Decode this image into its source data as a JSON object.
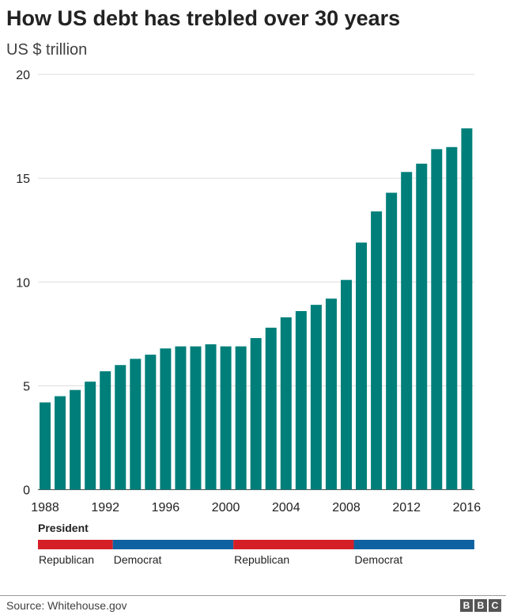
{
  "chart_data": {
    "type": "bar",
    "title": "How US debt has trebled over 30 years",
    "subtitle": "US $ trillion",
    "categories": [
      "1988",
      "1989",
      "1990",
      "1991",
      "1992",
      "1993",
      "1994",
      "1995",
      "1996",
      "1997",
      "1998",
      "1999",
      "2000",
      "2001",
      "2002",
      "2003",
      "2004",
      "2005",
      "2006",
      "2007",
      "2008",
      "2009",
      "2010",
      "2011",
      "2012",
      "2013",
      "2014",
      "2015",
      "2016"
    ],
    "values": [
      4.2,
      4.5,
      4.8,
      5.2,
      5.7,
      6.0,
      6.3,
      6.5,
      6.8,
      6.9,
      6.9,
      7.0,
      6.9,
      6.9,
      7.3,
      7.8,
      8.3,
      8.6,
      8.9,
      9.2,
      10.1,
      11.9,
      13.4,
      14.3,
      15.3,
      15.7,
      16.4,
      16.5,
      17.4
    ],
    "ylim": [
      0,
      20
    ],
    "yticks": [
      "0",
      "5",
      "10",
      "15",
      "20"
    ],
    "xticks": [
      "1988",
      "1992",
      "1996",
      "2000",
      "2004",
      "2008",
      "2012",
      "2016"
    ],
    "grid": true,
    "bar_color": "#007f7a",
    "president": {
      "label": "President",
      "segments": [
        {
          "party": "Republican",
          "from": 1988,
          "to": 1993,
          "color": "#d51f27"
        },
        {
          "party": "Democrat",
          "from": 1993,
          "to": 2001,
          "color": "#0f62a1"
        },
        {
          "party": "Republican",
          "from": 2001,
          "to": 2009,
          "color": "#d51f27"
        },
        {
          "party": "Democrat",
          "from": 2009,
          "to": 2017,
          "color": "#0f62a1"
        }
      ]
    }
  },
  "footer": {
    "source": "Source: Whitehouse.gov",
    "logo": [
      "B",
      "B",
      "C"
    ]
  }
}
